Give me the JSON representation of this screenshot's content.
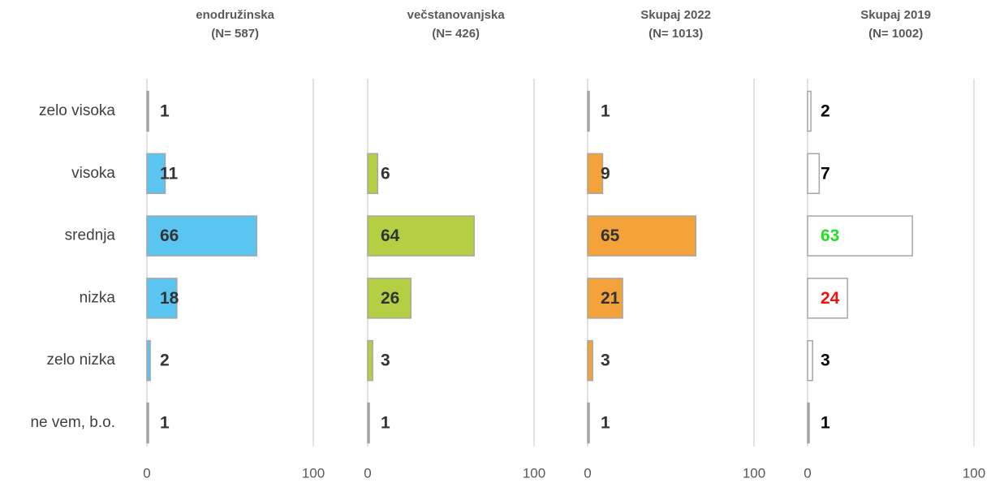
{
  "chart_data": [
    {
      "type": "bar",
      "title": [
        "enodružinska",
        "(N= 587)"
      ],
      "categories": [
        "zelo visoka",
        "visoka",
        "srednja",
        "nizka",
        "zelo nizka",
        "ne vem, b.o."
      ],
      "values": [
        1,
        11,
        66,
        18,
        2,
        1
      ],
      "colors": [
        "#a6a6a6",
        "#5bc5f2",
        "#5bc5f2",
        "#5bc5f2",
        "#5bc5f2",
        "#a6a6a6"
      ],
      "label_color": "#333333",
      "xlim": [
        0,
        100
      ],
      "xticks": [
        0,
        100
      ],
      "grid": true
    },
    {
      "type": "bar",
      "title": [
        "večstanovanjska",
        "(N= 426)"
      ],
      "values": [
        0,
        6,
        64,
        26,
        3,
        1
      ],
      "value_labels": [
        null,
        "6",
        "64",
        "26",
        "3",
        "1"
      ],
      "colors": [
        "#a6a6a6",
        "#b5cf44",
        "#b5cf44",
        "#b5cf44",
        "#b5cf44",
        "#a6a6a6"
      ],
      "label_color": "#333333",
      "xlim": [
        0,
        100
      ],
      "xticks": [
        0,
        100
      ],
      "grid": true
    },
    {
      "type": "bar",
      "title": [
        "Skupaj 2022",
        "(N= 1013)"
      ],
      "values": [
        1,
        9,
        65,
        21,
        3,
        1
      ],
      "colors": [
        "#a6a6a6",
        "#f4a23a",
        "#f4a23a",
        "#f4a23a",
        "#f4a23a",
        "#a6a6a6"
      ],
      "label_color": "#333333",
      "xlim": [
        0,
        100
      ],
      "xticks": [
        0,
        100
      ],
      "grid": true
    },
    {
      "type": "bar",
      "title": [
        "Skupaj 2019",
        "(N= 1002)"
      ],
      "values": [
        2,
        7,
        63,
        24,
        3,
        1
      ],
      "colors": [
        "#ffffff",
        "#ffffff",
        "#ffffff",
        "#ffffff",
        "#ffffff",
        "#a6a6a6"
      ],
      "label_colors": [
        "#000000",
        "#000000",
        "#22dd22",
        "#ee1111",
        "#000000",
        "#000000"
      ],
      "xlim": [
        0,
        100
      ],
      "xticks": [
        0,
        100
      ],
      "grid": true
    }
  ]
}
